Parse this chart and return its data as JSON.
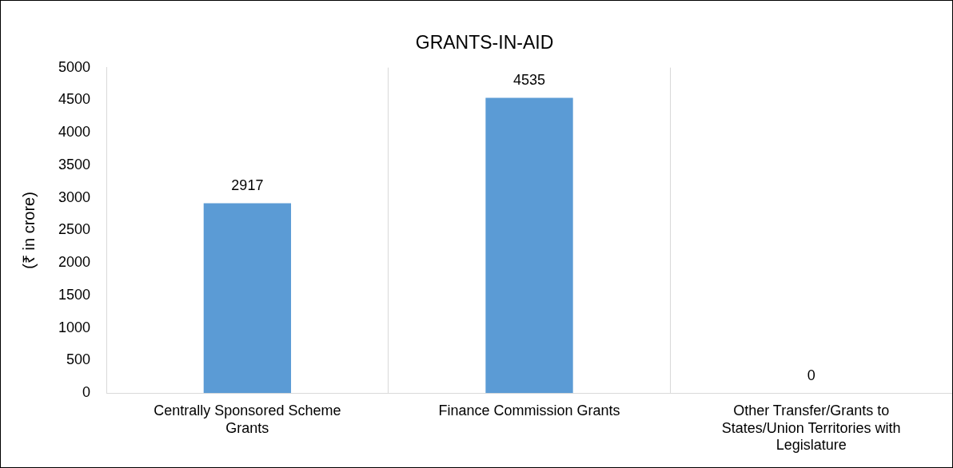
{
  "chart_data": {
    "type": "bar",
    "title": "GRANTS-IN-AID",
    "ylabel": "(₹ in crore)",
    "categories": [
      "Centrally Sponsored Scheme Grants",
      "Finance Commission Grants",
      "Other Transfer/Grants to States/Union Territories with Legislature"
    ],
    "values": [
      2917,
      4535,
      0
    ],
    "color": "#5b9bd5",
    "ylim": [
      0,
      5000
    ],
    "yticks": [
      0,
      500,
      1000,
      1500,
      2000,
      2500,
      3000,
      3500,
      4000,
      4500,
      5000
    ],
    "grid": "x",
    "legend": false,
    "data_labels": true
  }
}
